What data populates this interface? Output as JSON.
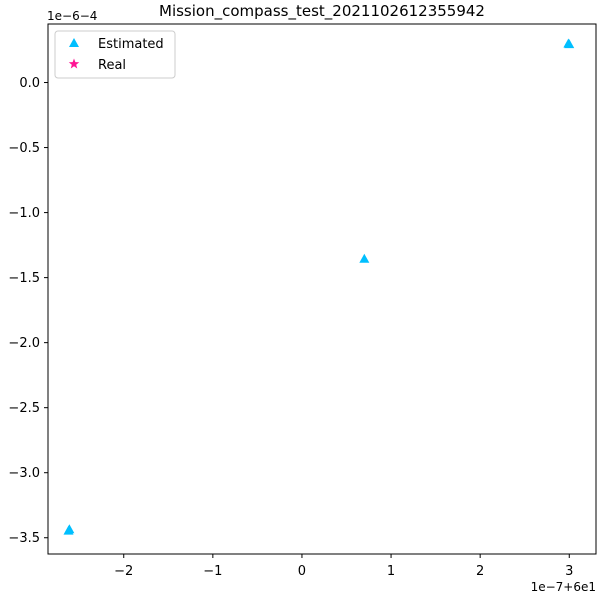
{
  "chart_data": {
    "type": "scatter",
    "title": "Mission_compass_test_2021102612355942",
    "xlabel": "",
    "ylabel": "",
    "x_offset_text": "1e−7+6e1",
    "y_offset_text": "1e−6−4",
    "xlim": [
      -2.85,
      3.3
    ],
    "ylim": [
      -3.625,
      0.45
    ],
    "x_ticks": [
      {
        "value": -2,
        "label": "−2"
      },
      {
        "value": -1,
        "label": "−1"
      },
      {
        "value": 0,
        "label": "0"
      },
      {
        "value": 1,
        "label": "1"
      },
      {
        "value": 2,
        "label": "2"
      },
      {
        "value": 3,
        "label": "3"
      }
    ],
    "y_ticks": [
      {
        "value": 0.0,
        "label": "0.0"
      },
      {
        "value": -0.5,
        "label": "−0.5"
      },
      {
        "value": -1.0,
        "label": "−1.0"
      },
      {
        "value": -1.5,
        "label": "−1.5"
      },
      {
        "value": -2.0,
        "label": "−2.0"
      },
      {
        "value": -2.5,
        "label": "−2.5"
      },
      {
        "value": -3.0,
        "label": "−3.0"
      },
      {
        "value": -3.5,
        "label": "−3.5"
      }
    ],
    "grid": false,
    "legend_position": "top-left",
    "series": [
      {
        "name": "Estimated",
        "marker": "triangle",
        "color": "#00bfff",
        "points": [
          {
            "x": -2.62,
            "y": -3.445
          },
          {
            "x": -2.61,
            "y": -3.435
          },
          {
            "x": 0.7,
            "y": -1.355
          },
          {
            "x": 2.99,
            "y": 0.3
          },
          {
            "x": 3.0,
            "y": 0.295
          }
        ]
      },
      {
        "name": "Real",
        "marker": "star",
        "color": "#ff1493",
        "points": []
      }
    ]
  }
}
